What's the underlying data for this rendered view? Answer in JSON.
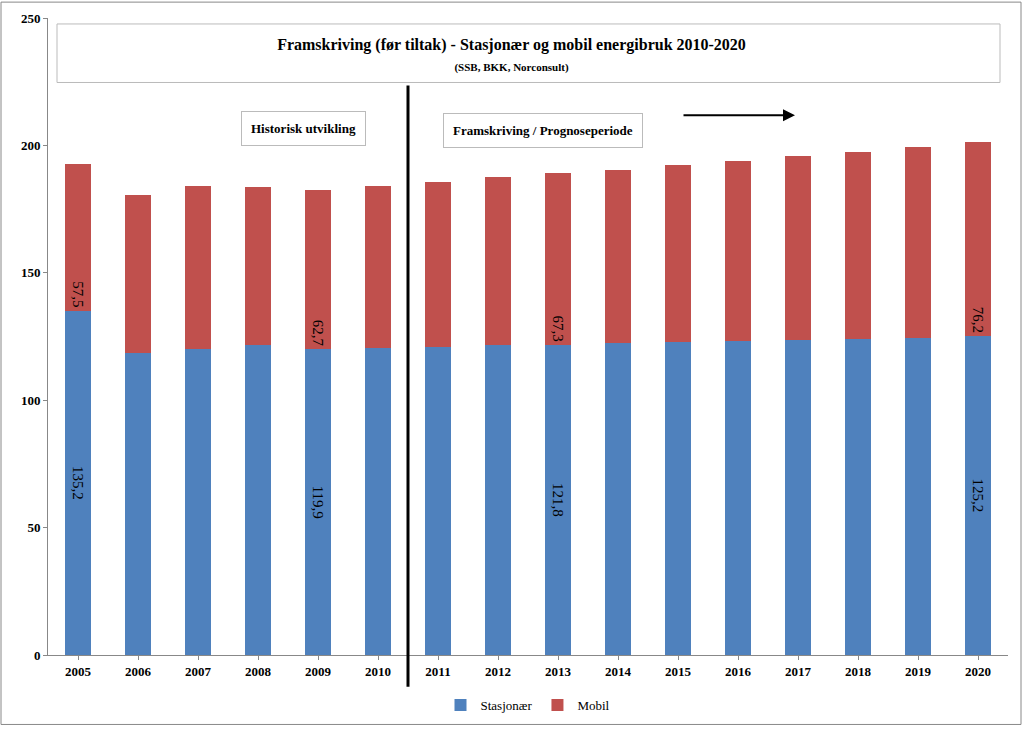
{
  "chart_data": {
    "type": "bar",
    "title": "Framskriving (før tiltak) - Stasjonær og mobil energibruk 2010-2020",
    "subtitle": "(SSB, BKK, Norconsult)",
    "annotations": [
      "Historisk utvikling",
      "Framskriving / Prognoseperiode"
    ],
    "categories": [
      "2005",
      "2006",
      "2007",
      "2008",
      "2009",
      "2010",
      "2011",
      "2012",
      "2013",
      "2014",
      "2015",
      "2016",
      "2017",
      "2018",
      "2019",
      "2020"
    ],
    "series": [
      {
        "name": "Stasjonær",
        "color": "#4F81BD",
        "values": [
          135.2,
          118.4,
          120.0,
          121.5,
          119.9,
          120.3,
          120.7,
          121.5,
          121.8,
          122.3,
          122.7,
          123.1,
          123.8,
          124.2,
          124.6,
          125.2
        ],
        "value_labels": [
          "135,2",
          null,
          null,
          null,
          "119,9",
          null,
          null,
          null,
          "121,8",
          null,
          null,
          null,
          null,
          null,
          null,
          "125,2"
        ]
      },
      {
        "name": "Mobil",
        "color": "#C0504D",
        "values": [
          57.5,
          62.1,
          64.0,
          62.0,
          62.7,
          63.7,
          64.8,
          66.0,
          67.3,
          68.2,
          69.8,
          70.9,
          72.2,
          73.3,
          74.9,
          76.2
        ],
        "value_labels": [
          "57,5",
          null,
          null,
          null,
          "62,7",
          null,
          null,
          null,
          "67,3",
          null,
          null,
          null,
          null,
          null,
          null,
          "76,2"
        ]
      }
    ],
    "stacked": true,
    "data_labels": true,
    "ylim": [
      0,
      250
    ],
    "yticks": [
      0,
      50,
      100,
      150,
      200,
      250
    ],
    "grid": false,
    "legend": "bottom"
  }
}
